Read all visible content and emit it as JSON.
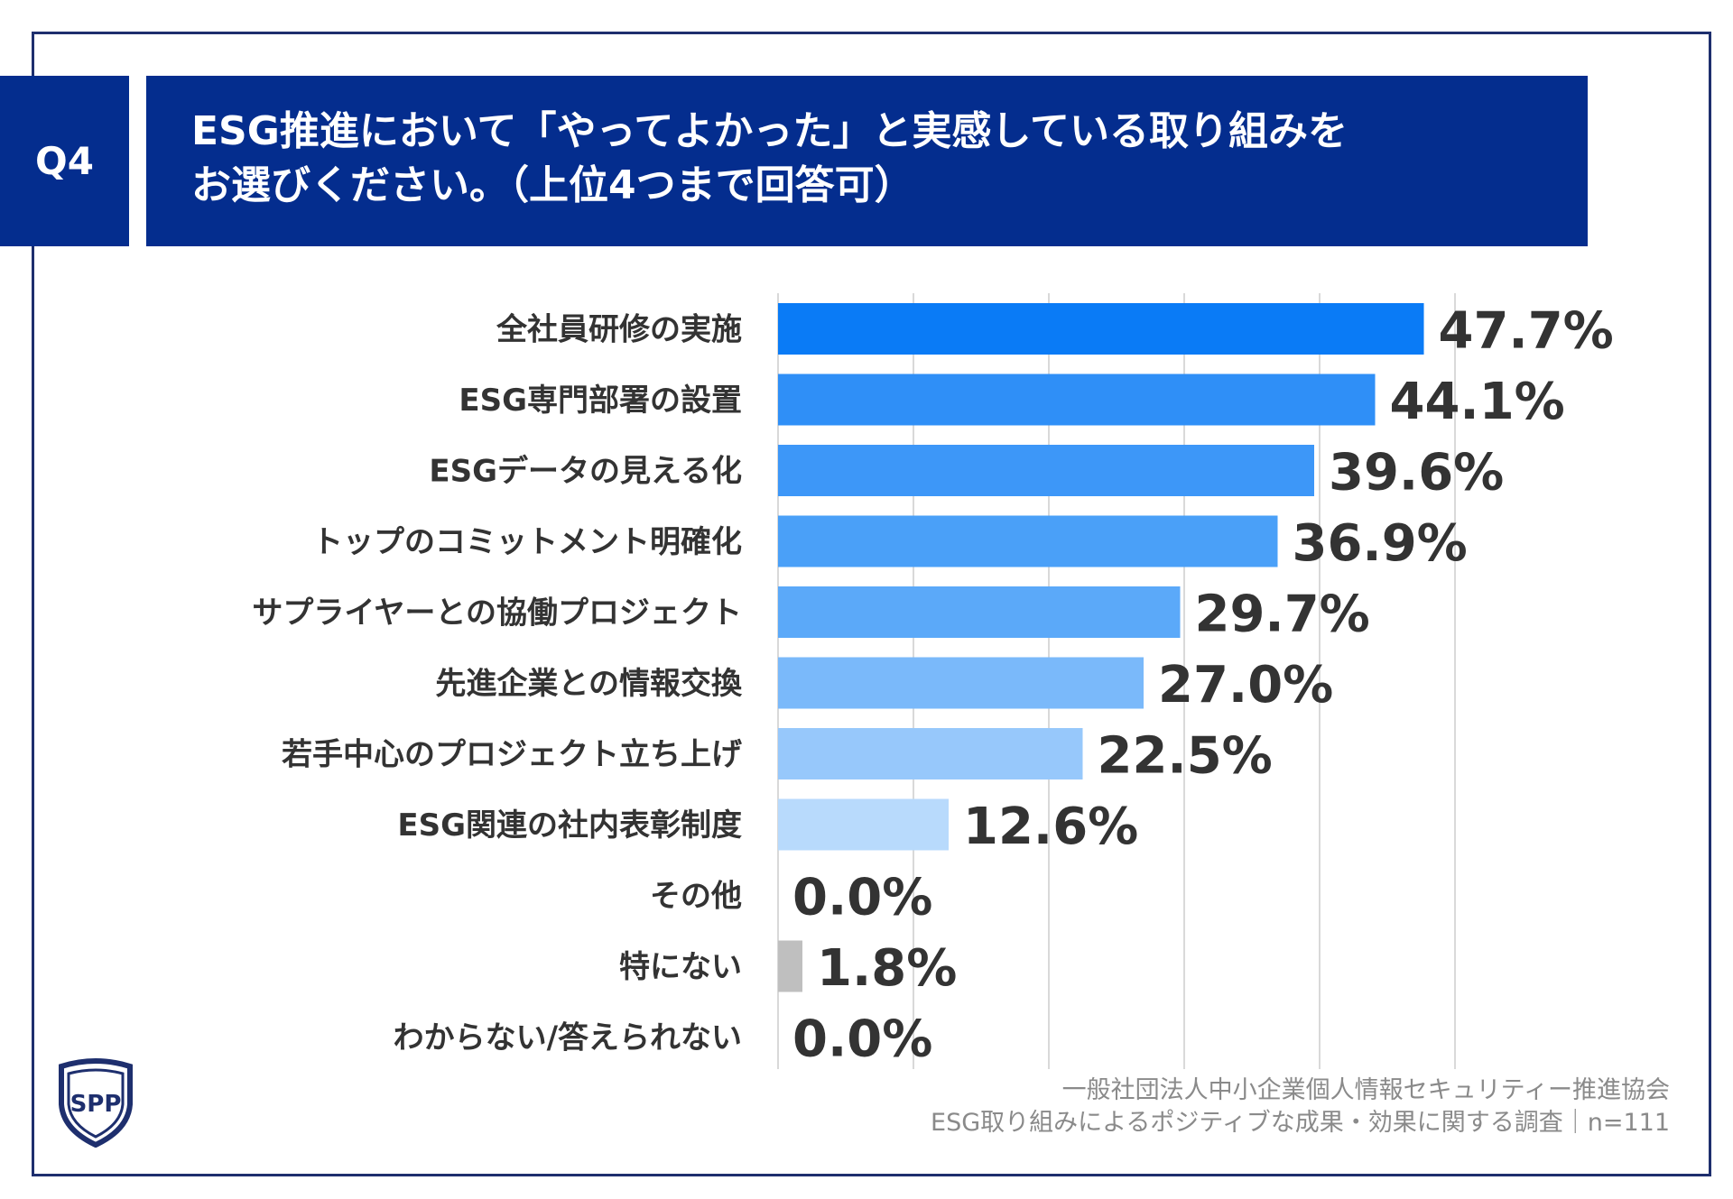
{
  "question": {
    "number": "Q4",
    "title_lines": [
      "ESG推進において「やってよかった」と実感している取り組みを",
      "お選びください。（上位4つまで回答可）"
    ]
  },
  "chart_data": {
    "type": "bar",
    "orientation": "horizontal",
    "categories": [
      "全社員研修の実施",
      "ESG専門部署の設置",
      "ESGデータの見える化",
      "トップのコミットメント明確化",
      "サプライヤーとの協働プロジェクト",
      "先進企業との情報交換",
      "若手中心のプロジェクト立ち上げ",
      "ESG関連の社内表彰制度",
      "その他",
      "特にない",
      "わからない/答えられない"
    ],
    "values": [
      47.7,
      44.1,
      39.6,
      36.9,
      29.7,
      27.0,
      22.5,
      12.6,
      0.0,
      1.8,
      0.0
    ],
    "value_labels": [
      "47.7%",
      "44.1%",
      "39.6%",
      "36.9%",
      "29.7%",
      "27.0%",
      "22.5%",
      "12.6%",
      "0.0%",
      "1.8%",
      "0.0%"
    ],
    "bar_colors": [
      "#0a7bf6",
      "#2f8ff7",
      "#3d97f8",
      "#4aa0f8",
      "#5ba9f9",
      "#7ab9fa",
      "#97c8fb",
      "#b8dafc",
      "#b8dafc",
      "#bfbfbf",
      "#bfbfbf"
    ],
    "xlim": [
      0,
      50
    ],
    "gridlines": [
      0,
      10,
      20,
      30,
      40,
      50
    ],
    "grid": true,
    "legend": false
  },
  "source": {
    "line1": "一般社団法人中小企業個人情報セキュリティー推進協会",
    "line2": "ESG取り組みによるポジティブな成果・効果に関する調査｜n=111"
  },
  "logo": {
    "icon": "sppc-shield-logo"
  }
}
